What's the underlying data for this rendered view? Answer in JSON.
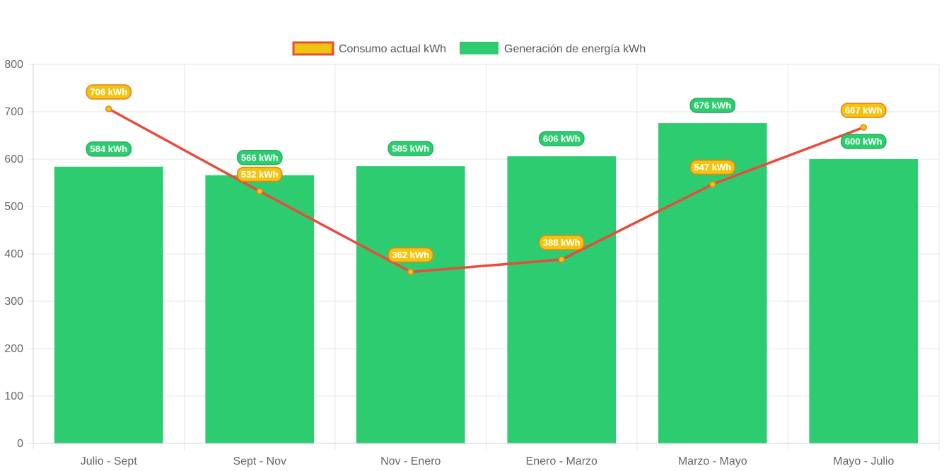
{
  "chart_data": {
    "type": "bar",
    "categories": [
      "Julio - Sept",
      "Sept - Nov",
      "Nov - Enero",
      "Enero - Marzo",
      "Marzo - Mayo",
      "Mayo - Julio"
    ],
    "series": [
      {
        "name": "Consumo actual kWh",
        "type": "line",
        "values": [
          706,
          532,
          362,
          388,
          547,
          667
        ],
        "labels": [
          "706 kWh",
          "532 kWh",
          "362 kWh",
          "388 kWh",
          "547 kWh",
          "667 kWh"
        ],
        "color": "#e74c3c",
        "fill": "#f1c40f"
      },
      {
        "name": "Generación de energía kWh",
        "type": "bar",
        "values": [
          584,
          566,
          585,
          606,
          676,
          600
        ],
        "labels": [
          "584 kWh",
          "566 kWh",
          "585 kWh",
          "606 kWh",
          "676 kWh",
          "600 kWh"
        ],
        "color": "#2ecc71"
      }
    ],
    "ylim": [
      0,
      800
    ],
    "yticks": [
      "0",
      "100",
      "200",
      "300",
      "400",
      "500",
      "600",
      "700",
      "800"
    ],
    "grid": true,
    "legend_position": "top-center",
    "title": "",
    "xlabel": "",
    "ylabel": ""
  }
}
